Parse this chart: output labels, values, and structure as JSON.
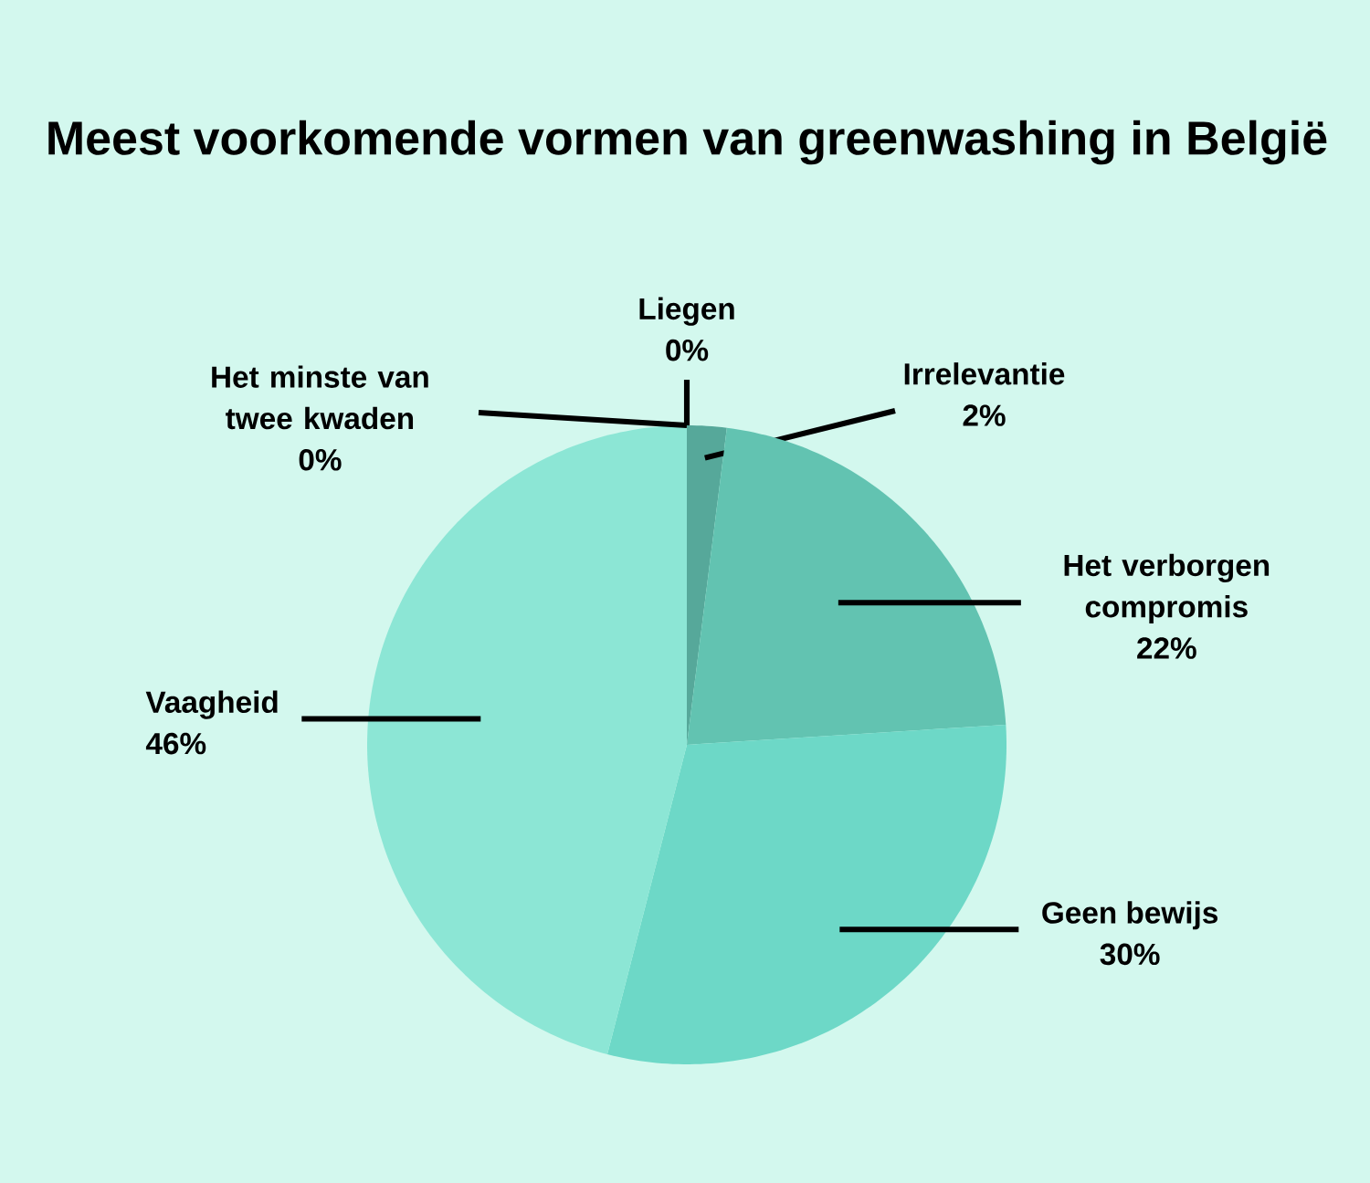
{
  "chart_data": {
    "type": "pie",
    "title": "Meest voorkomende vormen van greenwashing in België",
    "categories": [
      "Liegen",
      "Irrelevantie",
      "Het verborgen compromis",
      "Geen bewijs",
      "Vaagheid",
      "Het minste van twee kwaden"
    ],
    "values": [
      0,
      2,
      22,
      30,
      46,
      0
    ],
    "value_labels": [
      "0%",
      "2%",
      "22%",
      "30%",
      "46%",
      "0%"
    ],
    "colors": [
      "#4e9c8e",
      "#56a89a",
      "#62c3b1",
      "#6dd8c7",
      "#8ce6d5",
      "#7fd9c8"
    ]
  }
}
